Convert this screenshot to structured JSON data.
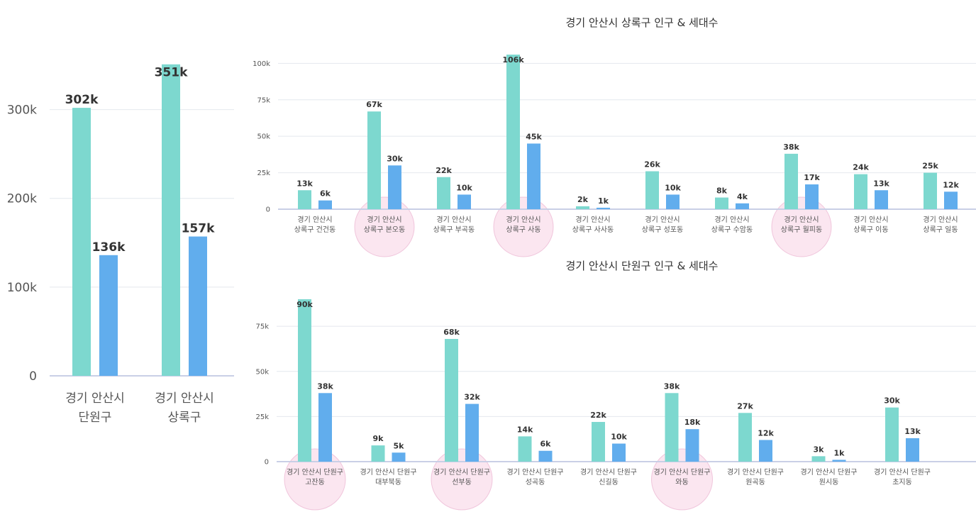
{
  "colors": {
    "population": "#7dd8cf",
    "households": "#61aded",
    "highlight": "#f6c7de"
  },
  "chart_data": [
    {
      "type": "bar",
      "title": "",
      "categories": [
        "경기 안산시 단원구",
        "경기 안산시 상록구"
      ],
      "category_lines": [
        [
          "경기 안산시",
          "단원구"
        ],
        [
          "경기 안산시",
          "상록구"
        ]
      ],
      "series": [
        {
          "values": [
            302000,
            351000
          ],
          "labels": [
            "302k",
            "351k"
          ]
        },
        {
          "values": [
            136000,
            157000
          ],
          "labels": [
            "136k",
            "157k"
          ]
        }
      ],
      "ylim": [
        0,
        350000
      ],
      "yticks": [
        0,
        100000,
        200000,
        300000
      ],
      "ytick_labels": [
        "0",
        "100k",
        "200k",
        "300k"
      ],
      "grid": true
    },
    {
      "type": "bar",
      "title": "경기 안산시 상록구 인구 & 세대수",
      "categories": [
        "경기 안산시 상록구 건건동",
        "경기 안산시 상록구 본오동",
        "경기 안산시 상록구 부곡동",
        "경기 안산시 상록구 사동",
        "경기 안산시 상록구 사사동",
        "경기 안산시 상록구 성포동",
        "경기 안산시 상록구 수암동",
        "경기 안산시 상록구 월피동",
        "경기 안산시 상록구 이동",
        "경기 안산시 상록구 일동"
      ],
      "category_lines": [
        [
          "경기 안산시",
          "상록구 건건동"
        ],
        [
          "경기 안산시",
          "상록구 본오동"
        ],
        [
          "경기 안산시",
          "상록구 부곡동"
        ],
        [
          "경기 안산시",
          "상록구 사동"
        ],
        [
          "경기 안산시",
          "상록구 사사동"
        ],
        [
          "경기 안산시",
          "상록구 성포동"
        ],
        [
          "경기 안산시",
          "상록구 수암동"
        ],
        [
          "경기 안산시",
          "상록구 월피동"
        ],
        [
          "경기 안산시",
          "상록구 이동"
        ],
        [
          "경기 안산시",
          "상록구 일동"
        ]
      ],
      "series": [
        {
          "values": [
            13000,
            67000,
            22000,
            106000,
            2000,
            26000,
            8000,
            38000,
            24000,
            25000
          ],
          "labels": [
            "13k",
            "67k",
            "22k",
            "106k",
            "2k",
            "26k",
            "8k",
            "38k",
            "24k",
            "25k"
          ]
        },
        {
          "values": [
            6000,
            30000,
            10000,
            45000,
            1000,
            10000,
            4000,
            17000,
            13000,
            12000
          ],
          "labels": [
            "6k",
            "30k",
            "10k",
            "45k",
            "1k",
            "10k",
            "4k",
            "17k",
            "13k",
            "12k"
          ]
        }
      ],
      "ylim": [
        0,
        106000
      ],
      "yticks": [
        0,
        25000,
        50000,
        75000,
        100000
      ],
      "ytick_labels": [
        "0",
        "25k",
        "50k",
        "75k",
        "100k"
      ],
      "grid": true,
      "highlighted_categories": [
        1,
        3,
        7
      ]
    },
    {
      "type": "bar",
      "title": "경기 안산시 단원구 인구 & 세대수",
      "categories": [
        "경기 안산시 단원구 고잔동",
        "경기 안산시 단원구 대부북동",
        "경기 안산시 단원구 선부동",
        "경기 안산시 단원구 성곡동",
        "경기 안산시 단원구 신길동",
        "경기 안산시 단원구 와동",
        "경기 안산시 단원구 원곡동",
        "경기 안산시 단원구 원시동",
        "경기 안산시 단원구 초지동"
      ],
      "category_lines": [
        [
          "경기 안산시 단원구",
          "고잔동"
        ],
        [
          "경기 안산시 단원구",
          "대부북동"
        ],
        [
          "경기 안산시 단원구",
          "선부동"
        ],
        [
          "경기 안산시 단원구",
          "성곡동"
        ],
        [
          "경기 안산시 단원구",
          "신길동"
        ],
        [
          "경기 안산시 단원구",
          "와동"
        ],
        [
          "경기 안산시 단원구",
          "원곡동"
        ],
        [
          "경기 안산시 단원구",
          "원시동"
        ],
        [
          "경기 안산시 단원구",
          "초지동"
        ]
      ],
      "series": [
        {
          "values": [
            90000,
            9000,
            68000,
            14000,
            22000,
            38000,
            27000,
            3000,
            30000
          ],
          "labels": [
            "90k",
            "9k",
            "68k",
            "14k",
            "22k",
            "38k",
            "27k",
            "3k",
            "30k"
          ]
        },
        {
          "values": [
            38000,
            5000,
            32000,
            6000,
            10000,
            18000,
            12000,
            1000,
            13000
          ],
          "labels": [
            "38k",
            "5k",
            "32k",
            "6k",
            "10k",
            "18k",
            "12k",
            "1k",
            "13k"
          ]
        }
      ],
      "ylim": [
        0,
        90000
      ],
      "yticks": [
        0,
        25000,
        50000,
        75000
      ],
      "ytick_labels": [
        "0",
        "25k",
        "50k",
        "75k"
      ],
      "grid": true,
      "highlighted_categories": [
        0,
        2,
        5
      ]
    }
  ]
}
